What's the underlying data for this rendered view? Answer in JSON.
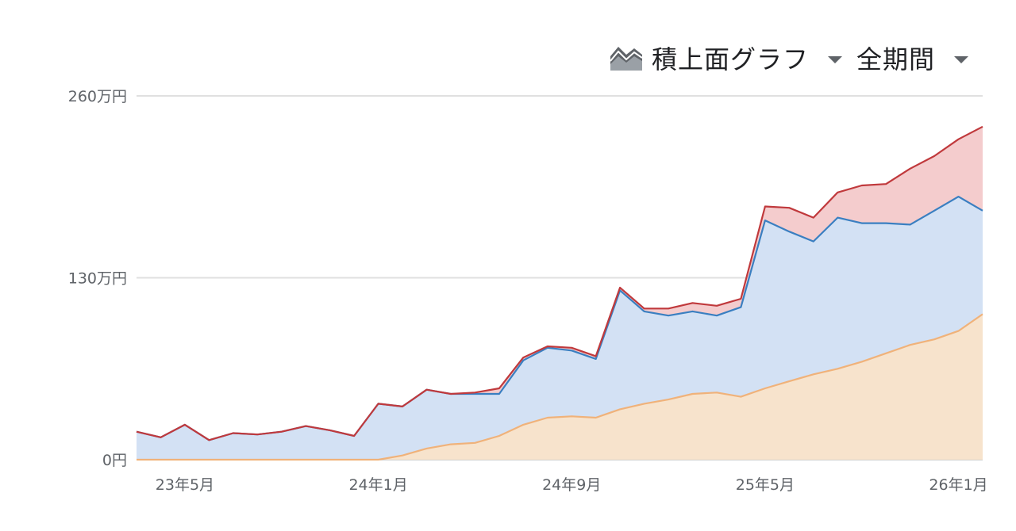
{
  "toolbar": {
    "chart_type_label": "積上面グラフ",
    "chart_type_icon": "stacked-area-chart-icon",
    "period_label": "全期間"
  },
  "colors": {
    "series_bottom_fill": "#f7e3cc",
    "series_bottom_line": "#f0b27a",
    "series_middle_fill": "#d3e1f4",
    "series_middle_line": "#3a7fc1",
    "series_top_fill": "#f4cccd",
    "series_top_line": "#c0393c",
    "gridline": "#e0e0e0"
  },
  "chart_data": {
    "type": "area",
    "stacked": true,
    "title": "",
    "xlabel": "",
    "ylabel": "",
    "x_range": [
      "2023-03",
      "2026-02"
    ],
    "y_range": [
      0,
      2600000
    ],
    "y_ticks": [
      {
        "value": 0,
        "label": "0円"
      },
      {
        "value": 1300000,
        "label": "130万円"
      },
      {
        "value": 2600000,
        "label": "260万円"
      }
    ],
    "x_ticks": [
      {
        "value": "2023-05",
        "label": "23年5月"
      },
      {
        "value": "2024-01",
        "label": "24年1月"
      },
      {
        "value": "2024-09",
        "label": "24年9月"
      },
      {
        "value": "2025-05",
        "label": "25年5月"
      },
      {
        "value": "2026-01",
        "label": "26年1月"
      }
    ],
    "grid": true,
    "x": [
      "2023-03",
      "2023-04",
      "2023-05",
      "2023-06",
      "2023-07",
      "2023-08",
      "2023-09",
      "2023-10",
      "2023-11",
      "2023-12",
      "2024-01",
      "2024-02",
      "2024-03",
      "2024-04",
      "2024-05",
      "2024-06",
      "2024-07",
      "2024-08",
      "2024-09",
      "2024-10",
      "2024-11",
      "2024-12",
      "2025-01",
      "2025-02",
      "2025-03",
      "2025-04",
      "2025-05",
      "2025-06",
      "2025-07",
      "2025-08",
      "2025-09",
      "2025-10",
      "2025-11",
      "2025-12",
      "2026-01",
      "2026-02"
    ],
    "series": [
      {
        "values": [
          0,
          0,
          0,
          0,
          0,
          0,
          0,
          0,
          0,
          0,
          0,
          30000,
          80000,
          110000,
          120000,
          170000,
          250000,
          300000,
          310000,
          300000,
          360000,
          400000,
          430000,
          470000,
          480000,
          450000,
          510000,
          560000,
          610000,
          650000,
          700000,
          760000,
          820000,
          860000,
          920000,
          1040000
        ]
      },
      {
        "values": [
          200000,
          160000,
          250000,
          140000,
          190000,
          180000,
          200000,
          240000,
          210000,
          170000,
          400000,
          350000,
          420000,
          360000,
          350000,
          300000,
          460000,
          500000,
          470000,
          420000,
          850000,
          660000,
          600000,
          590000,
          550000,
          640000,
          1200000,
          1070000,
          950000,
          1080000,
          990000,
          930000,
          860000,
          920000,
          960000,
          740000
        ]
      },
      {
        "values": [
          0,
          0,
          0,
          0,
          0,
          0,
          0,
          0,
          0,
          0,
          0,
          0,
          0,
          0,
          10000,
          40000,
          20000,
          10000,
          20000,
          20000,
          20000,
          20000,
          50000,
          60000,
          70000,
          60000,
          100000,
          170000,
          170000,
          180000,
          270000,
          280000,
          400000,
          390000,
          410000,
          600000
        ]
      }
    ]
  }
}
